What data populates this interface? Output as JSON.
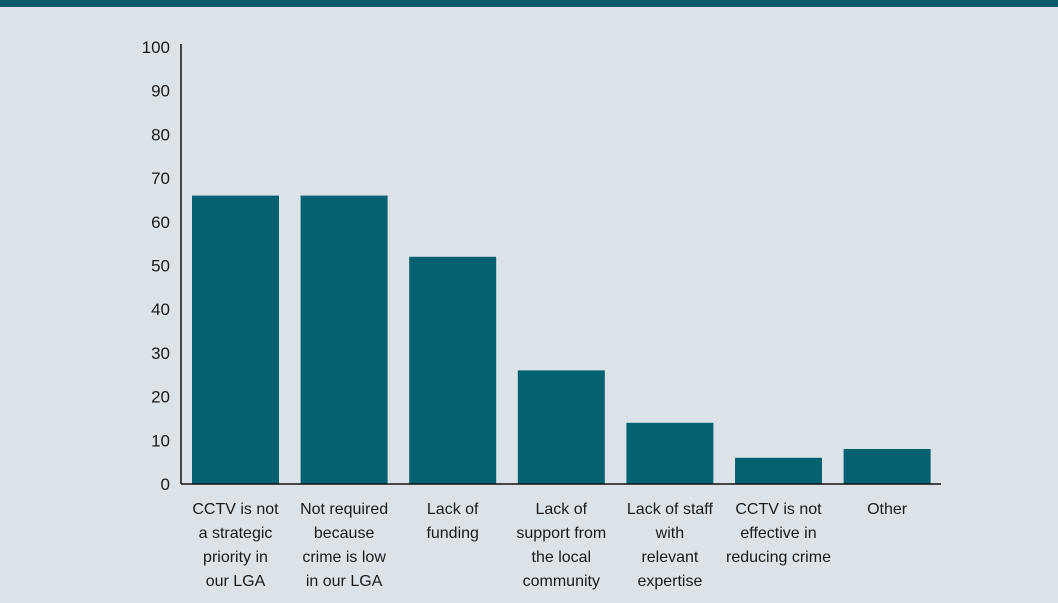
{
  "chart_data": {
    "type": "bar",
    "title": "",
    "xlabel": "",
    "ylabel": "",
    "ylim": [
      0,
      100
    ],
    "yticks": [
      0,
      10,
      20,
      30,
      40,
      50,
      60,
      70,
      80,
      90,
      100
    ],
    "grid": false,
    "categories": [
      [
        "CCTV is not",
        "a strategic",
        "priority in",
        "our LGA"
      ],
      [
        "Not required",
        "because",
        "crime is low",
        "in our LGA"
      ],
      [
        "Lack of",
        "funding"
      ],
      [
        "Lack of",
        "support from",
        "the local",
        "community"
      ],
      [
        "Lack of staff",
        "with",
        "relevant",
        "expertise"
      ],
      [
        "CCTV is not",
        "effective in",
        "reducing crime"
      ],
      [
        "Other"
      ]
    ],
    "values": [
      66,
      66,
      52,
      26,
      14,
      6,
      8
    ],
    "bar_color": "#04616f",
    "axis_color": "#111111"
  }
}
